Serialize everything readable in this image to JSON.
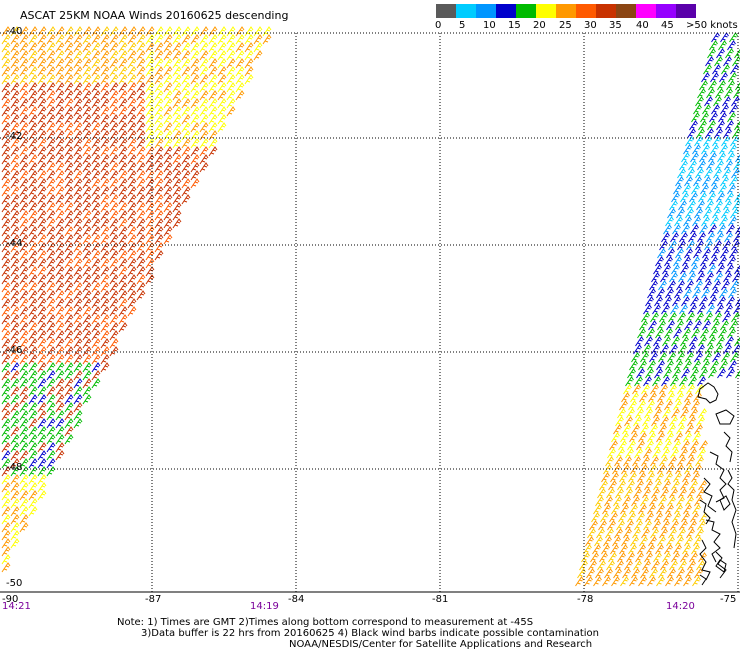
{
  "title": "ASCAT 25KM NOAA Winds 20160625 descending",
  "colorbar": {
    "colors": [
      "#5a5a5a",
      "#00ccff",
      "#0096ff",
      "#0000cc",
      "#00bb00",
      "#ffff00",
      "#ff9900",
      "#ff5a00",
      "#c83200",
      "#8b4513",
      "#ff00ff",
      "#9600ff",
      "#5a00aa"
    ],
    "labels": [
      "0",
      "5",
      "10",
      "15",
      "20",
      "25",
      "30",
      "35",
      "40",
      "45",
      ">50 knots"
    ]
  },
  "lat_labels": [
    "-40",
    "-42",
    "-44",
    "-46",
    "-48",
    "-50"
  ],
  "lon_labels": [
    "-90",
    "-87",
    "-84",
    "-81",
    "-78",
    "-75"
  ],
  "time_labels": [
    "14:21",
    "14:19",
    "14:20"
  ],
  "notes": [
    "Note: 1) Times are GMT 2)Times along bottom correspond to measurement at -45S",
    "3)Data buffer is 22 hrs from 20160625 4) Black wind barbs indicate possible contamination",
    "NOAA/NESDIS/Center for Satellite Applications and Research"
  ]
}
